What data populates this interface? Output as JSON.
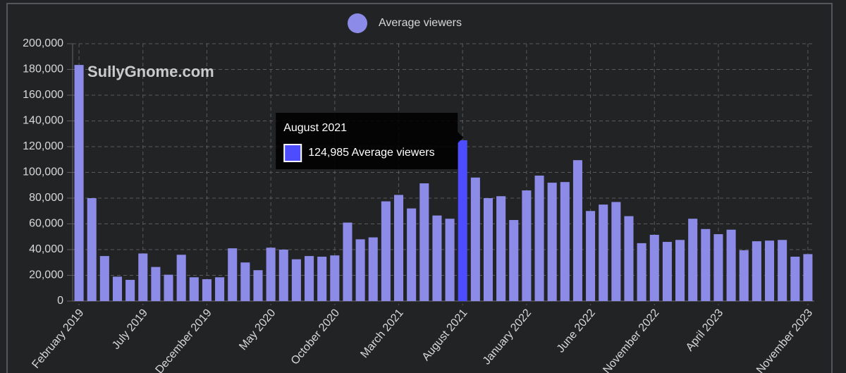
{
  "chart_data": {
    "type": "bar",
    "legend": "Average viewers",
    "watermark": "SullyGnome.com",
    "color": "#8c8ce8",
    "highlight_color": "#4d4dff",
    "tooltip": {
      "title": "August 2021",
      "label": "124,985 Average viewers"
    },
    "categories": [
      "February 2019",
      null,
      null,
      null,
      null,
      "July 2019",
      null,
      null,
      null,
      null,
      "December 2019",
      null,
      null,
      null,
      null,
      "May 2020",
      null,
      null,
      null,
      null,
      "October 2020",
      null,
      null,
      null,
      null,
      "March 2021",
      null,
      null,
      null,
      null,
      "August 2021",
      null,
      null,
      null,
      null,
      "January 2022",
      null,
      null,
      null,
      null,
      "June 2022",
      null,
      null,
      null,
      null,
      "November 2022",
      null,
      null,
      null,
      null,
      "April 2023",
      null,
      null,
      null,
      null,
      null,
      null,
      "November 2023"
    ],
    "values": [
      183500,
      80000,
      35000,
      19000,
      16500,
      37000,
      26500,
      20500,
      36000,
      18500,
      17000,
      18500,
      41000,
      30000,
      24000,
      41500,
      40000,
      32500,
      35000,
      34500,
      35500,
      61000,
      48000,
      49500,
      77500,
      82500,
      72000,
      91500,
      66500,
      64000,
      124985,
      96000,
      80000,
      81500,
      63000,
      86000,
      97500,
      92000,
      92500,
      109500,
      70000,
      75000,
      77000,
      66000,
      45000,
      51500,
      46000,
      47500,
      64000,
      56000,
      52000,
      55500,
      39500,
      46500,
      47000,
      47500,
      34500,
      36500
    ],
    "ylim": [
      0,
      200000
    ],
    "yticks": [
      0,
      {
        "value": 20000,
        "label": "20,000"
      },
      {
        "value": 40000,
        "label": "40,000"
      },
      {
        "value": 60000,
        "label": "60,000"
      },
      {
        "value": 80000,
        "label": "80,000"
      },
      {
        "value": 100000,
        "label": "100,000"
      },
      {
        "value": 120000,
        "label": "120,000"
      },
      {
        "value": 140000,
        "label": "140,000"
      },
      {
        "value": 160000,
        "label": "160,000"
      },
      {
        "value": 180000,
        "label": "180,000"
      },
      {
        "value": 200000,
        "label": "200,000"
      }
    ],
    "grid": true
  }
}
